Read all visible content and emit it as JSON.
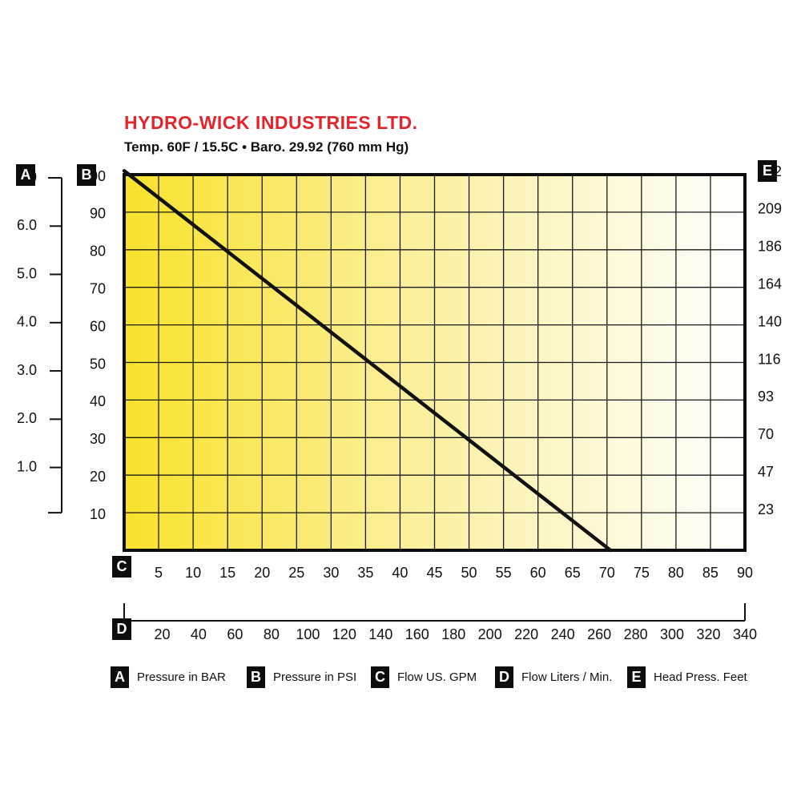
{
  "header": {
    "title": "HYDRO-WICK  INDUSTRIES LTD.",
    "subtitle": "Temp. 60F / 15.5C  •  Baro. 29.92 (760 mm Hg)"
  },
  "colors": {
    "title": "#e3242b",
    "gradient_start": "#f9e22a",
    "gradient_end": "#ffffff",
    "line": "#111111",
    "grid": "#1a1a1a"
  },
  "axis_badges": {
    "a": "A",
    "b": "B",
    "c": "C",
    "d": "D",
    "e": "E"
  },
  "legend": [
    {
      "key": "A",
      "label": "Pressure in BAR"
    },
    {
      "key": "B",
      "label": "Pressure in PSI"
    },
    {
      "key": "C",
      "label": "Flow US. GPM"
    },
    {
      "key": "D",
      "label": "Flow Liters / Min."
    },
    {
      "key": "E",
      "label": "Head Press. Feet"
    }
  ],
  "chart_data": {
    "type": "line",
    "title": "",
    "xlabel": "Flow US. GPM",
    "ylabel": "Pressure in PSI",
    "xlim": [
      0,
      90
    ],
    "ylim": [
      0,
      100
    ],
    "grid": true,
    "x_ticks": [
      5,
      10,
      15,
      20,
      25,
      30,
      35,
      40,
      45,
      50,
      55,
      60,
      65,
      70,
      75,
      80,
      85,
      90
    ],
    "y_ticks": [
      10,
      20,
      30,
      40,
      50,
      60,
      70,
      80,
      90,
      100
    ],
    "bar_ticks": [
      "7.0",
      "6.0",
      "5.0",
      "4.0",
      "3.0",
      "2.0",
      "1.0"
    ],
    "bar_values": [
      7.0,
      6.0,
      5.0,
      4.0,
      3.0,
      2.0,
      1.0
    ],
    "head_ticks": [
      "232",
      "209",
      "186",
      "164",
      "140",
      "116",
      "93",
      "70",
      "47",
      "23"
    ],
    "liters_ticks": [
      "20",
      "40",
      "60",
      "80",
      "100",
      "120",
      "140",
      "160",
      "180",
      "200",
      "220",
      "240",
      "260",
      "280",
      "300",
      "320",
      "340"
    ],
    "series": [
      {
        "x": [
          0,
          70.5
        ],
        "y": [
          101,
          0
        ]
      }
    ]
  }
}
